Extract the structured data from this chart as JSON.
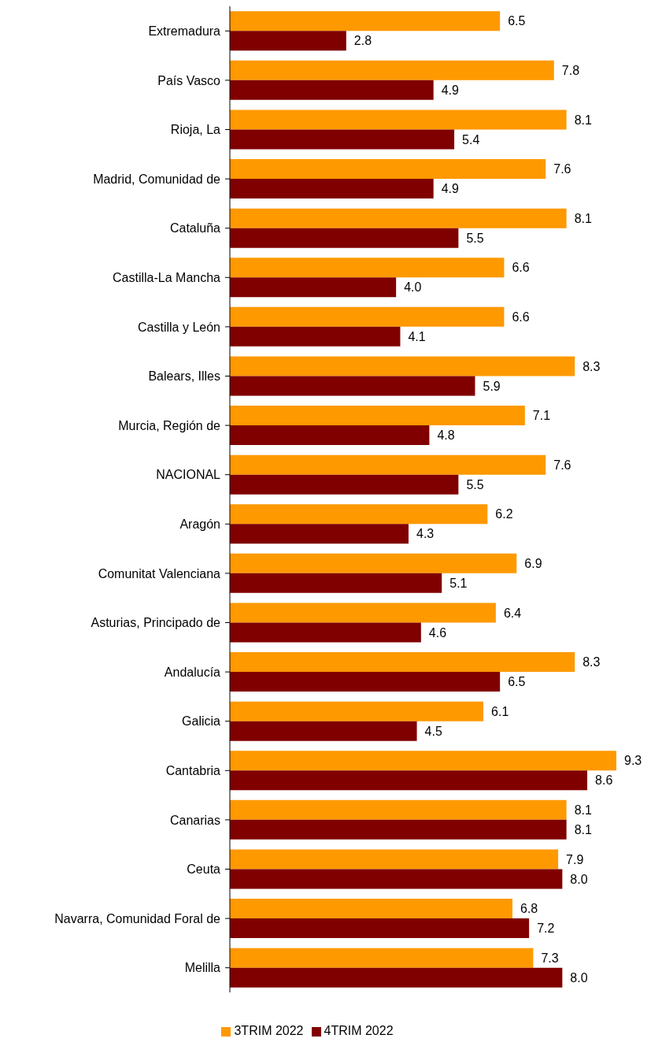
{
  "chart_data": {
    "type": "bar",
    "orientation": "horizontal",
    "categories": [
      "Extremadura",
      "País Vasco",
      "Rioja, La",
      "Madrid, Comunidad de",
      "Cataluña",
      "Castilla-La Mancha",
      "Castilla y León",
      "Balears, Illes",
      "Murcia, Región de",
      "NACIONAL",
      "Aragón",
      "Comunitat Valenciana",
      "Asturias, Principado de",
      "Andalucía",
      "Galicia",
      "Cantabria",
      "Canarias",
      "Ceuta",
      "Navarra, Comunidad Foral de",
      "Melilla"
    ],
    "series": [
      {
        "name": "3TRIM 2022",
        "color": "#ff9900",
        "values": [
          6.5,
          7.8,
          8.1,
          7.6,
          8.1,
          6.6,
          6.6,
          8.3,
          7.1,
          7.6,
          6.2,
          6.9,
          6.4,
          8.3,
          6.1,
          9.3,
          8.1,
          7.9,
          6.8,
          7.3
        ],
        "value_labels": [
          "6.5",
          "7.8",
          "8.1",
          "7.6",
          "8.1",
          "6.6",
          "6.6",
          "8.3",
          "7.1",
          "7.6",
          "6.2",
          "6.9",
          "6.4",
          "8.3",
          "6.1",
          "9.3",
          "8.1",
          "7.9",
          "6.8",
          "7.3"
        ]
      },
      {
        "name": "4TRIM 2022",
        "color": "#800000",
        "values": [
          2.8,
          4.9,
          5.4,
          4.9,
          5.5,
          4.0,
          4.1,
          5.9,
          4.8,
          5.5,
          4.3,
          5.1,
          4.6,
          6.5,
          4.5,
          8.6,
          8.1,
          8.0,
          7.2,
          8.0
        ],
        "value_labels": [
          "2.8",
          "4.9",
          "5.4",
          "4.9",
          "5.5",
          "4.0",
          "4.1",
          "5.9",
          "4.8",
          "5.5",
          "4.3",
          "5.1",
          "4.6",
          "6.5",
          "4.5",
          "8.6",
          "8.1",
          "8.0",
          "7.2",
          "8.0"
        ]
      }
    ],
    "legend": "bottom"
  }
}
